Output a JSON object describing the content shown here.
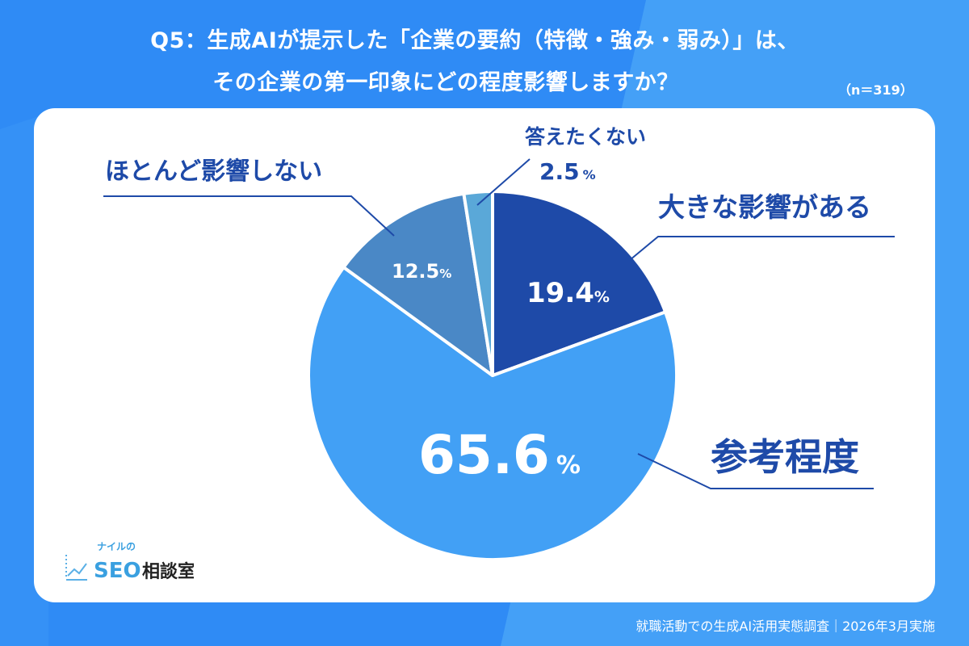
{
  "title_line1": "Q5：生成AIが提示した「企業の要約（特徴・強み・弱み）」は、",
  "title_line2": "その企業の第一印象にどの程度影響しますか？",
  "sample_size": "（n＝319）",
  "footer": "就職活動での生成AI活用実態調査｜2026年3月実施",
  "logo": {
    "small": "ナイルの",
    "main": "SEO",
    "suffix": "相談室",
    "icon": "chart-trend-icon"
  },
  "colors": {
    "background": "#2f8bf5",
    "label": "#1e4aa8"
  },
  "chart_data": {
    "type": "pie",
    "start": "top, clockwise",
    "slices": [
      {
        "label": "大きな影響がある",
        "value": 19.4,
        "display": "19.4",
        "color": "#1e4aa8"
      },
      {
        "label": "参考程度",
        "value": 65.6,
        "display": "65.6",
        "color": "#42a0f5"
      },
      {
        "label": "ほとんど影響しない",
        "value": 12.5,
        "display": "12.5",
        "color": "#4a88c6"
      },
      {
        "label": "答えたくない",
        "value": 2.5,
        "display": "2.5",
        "color": "#5aa8d8"
      }
    ],
    "unit": "%"
  }
}
